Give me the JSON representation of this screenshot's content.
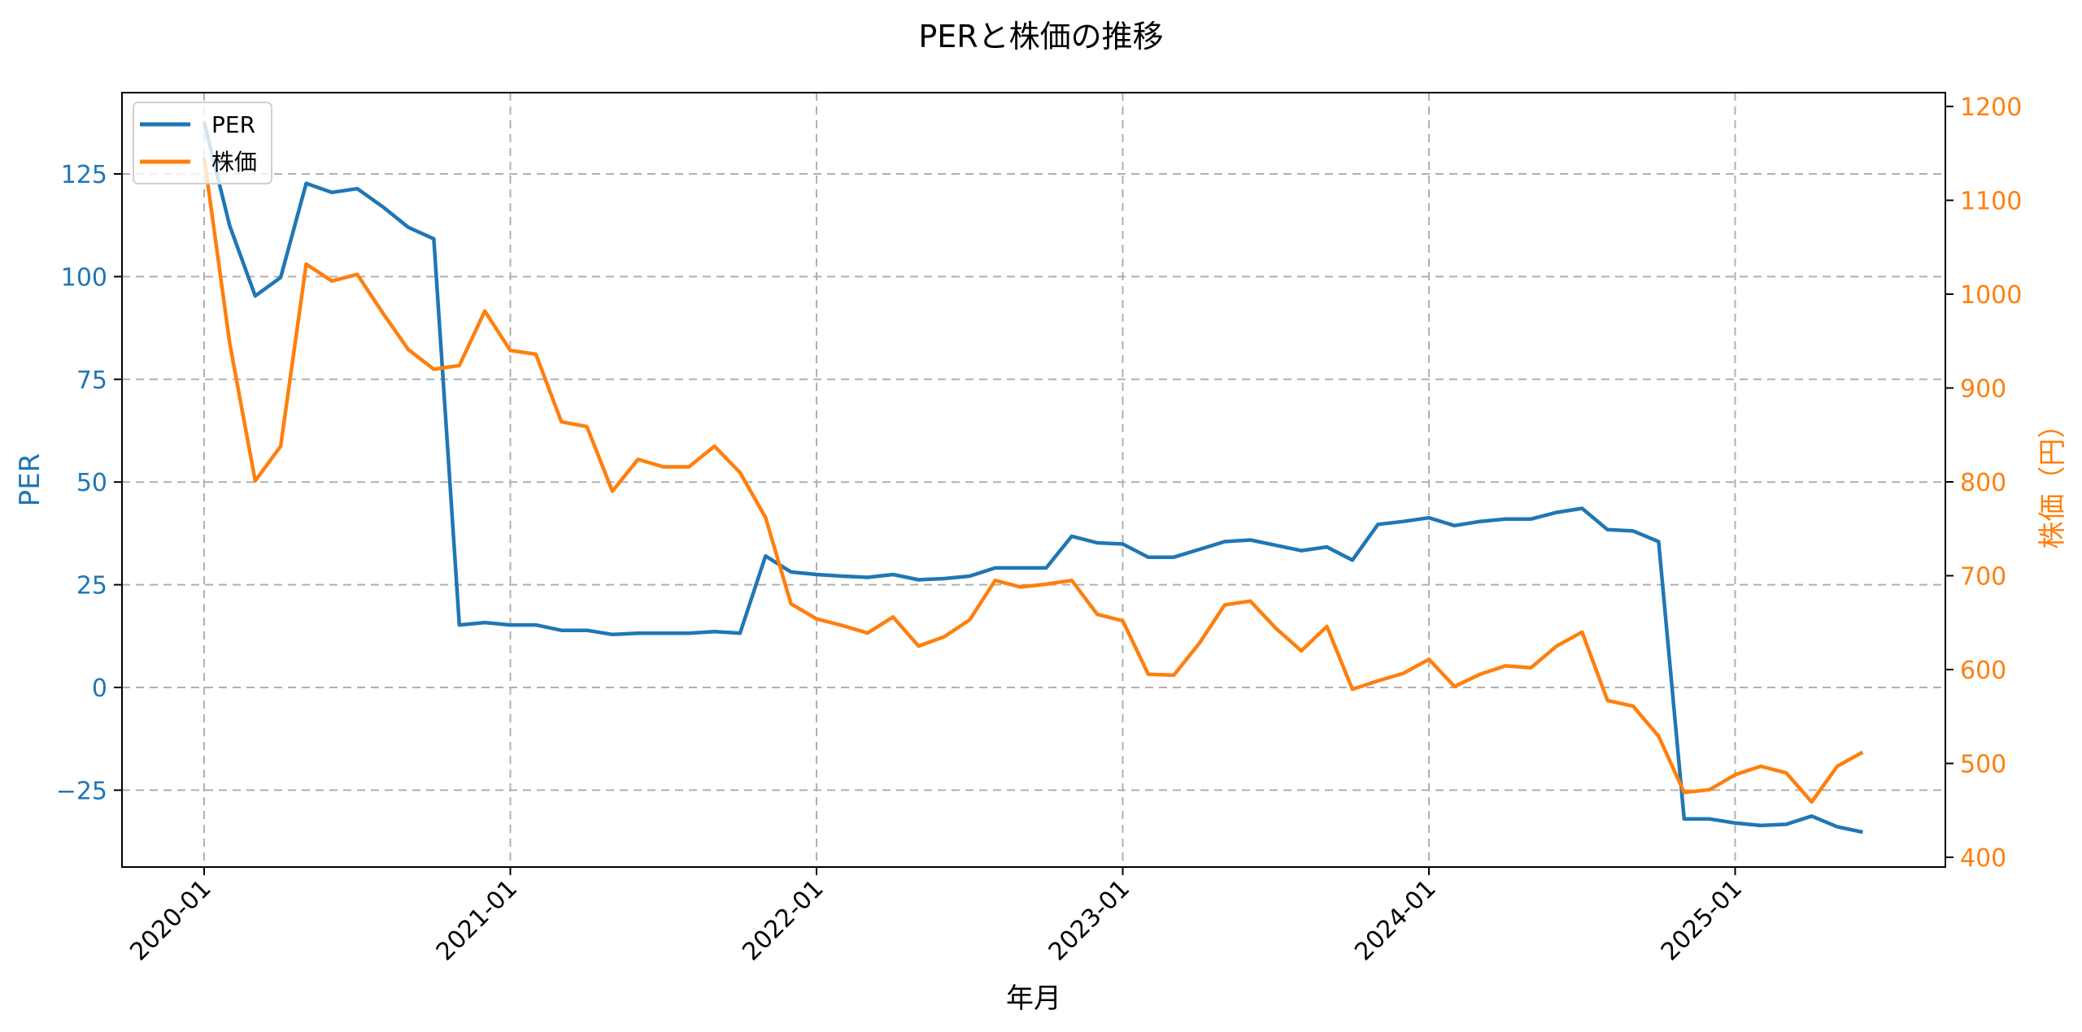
{
  "chart_data": {
    "type": "line",
    "title": "PERと株価の推移",
    "xlabel": "年月",
    "ylabel": "PER",
    "ylabel_right": "株価（円）",
    "ylim": [
      -43,
      143
    ],
    "ylim_right": [
      400,
      1215
    ],
    "yticks": [
      -25,
      0,
      25,
      50,
      75,
      100,
      125
    ],
    "yticks_right": [
      400,
      500,
      600,
      700,
      800,
      900,
      1000,
      1100,
      1200
    ],
    "xtick_labels": [
      "2020-01",
      "2021-01",
      "2022-01",
      "2023-01",
      "2024-01",
      "2025-01"
    ],
    "grid": true,
    "legend_position": "upper left",
    "colors": {
      "PER": "#1f77b4",
      "株価": "#ff7f0e"
    },
    "x": [
      "2020-01",
      "2020-02",
      "2020-03",
      "2020-04",
      "2020-05",
      "2020-06",
      "2020-07",
      "2020-08",
      "2020-09",
      "2020-10",
      "2020-11",
      "2020-12",
      "2021-01",
      "2021-02",
      "2021-03",
      "2021-04",
      "2021-05",
      "2021-06",
      "2021-07",
      "2021-08",
      "2021-09",
      "2021-10",
      "2021-11",
      "2021-12",
      "2022-01",
      "2022-02",
      "2022-03",
      "2022-04",
      "2022-05",
      "2022-06",
      "2022-07",
      "2022-08",
      "2022-09",
      "2022-10",
      "2022-11",
      "2022-12",
      "2023-01",
      "2023-02",
      "2023-03",
      "2023-04",
      "2023-05",
      "2023-06",
      "2023-07",
      "2023-08",
      "2023-09",
      "2023-10",
      "2023-11",
      "2023-12",
      "2024-01",
      "2024-02",
      "2024-03",
      "2024-04",
      "2024-05",
      "2024-06",
      "2024-07",
      "2024-08",
      "2024-09",
      "2024-10",
      "2024-11",
      "2024-12",
      "2025-01",
      "2025-02",
      "2025-03",
      "2025-04",
      "2025-05",
      "2025-06"
    ],
    "series": [
      {
        "name": "PER",
        "axis": "left",
        "values": [
          137.6,
          112.4,
          95.3,
          99.8,
          122.7,
          120.5,
          121.4,
          117.0,
          112.0,
          109.2,
          15.2,
          15.8,
          15.2,
          15.2,
          13.9,
          13.9,
          12.9,
          13.2,
          13.2,
          13.2,
          13.6,
          13.2,
          32.0,
          28.1,
          27.5,
          27.1,
          26.8,
          27.5,
          26.2,
          26.5,
          27.1,
          29.1,
          29.1,
          29.1,
          36.8,
          35.2,
          34.9,
          31.7,
          31.7,
          33.6,
          35.5,
          35.9,
          34.6,
          33.3,
          34.2,
          31.0,
          39.7,
          40.4,
          41.3,
          39.4,
          40.4,
          41.0,
          41.0,
          42.6,
          43.6,
          38.4,
          38.1,
          35.5,
          -32.0,
          -32.0,
          -33.0,
          -33.6,
          -33.3,
          -31.3,
          -33.9,
          -35.2
        ]
      },
      {
        "name": "株価",
        "axis": "right",
        "values": [
          1146,
          948,
          801,
          838,
          1032,
          1014,
          1021,
          980,
          941,
          920,
          924,
          982,
          940,
          936,
          864,
          859,
          790,
          824,
          816,
          816,
          838,
          810,
          762,
          670,
          654,
          647,
          639,
          656,
          625,
          635,
          653,
          695,
          688,
          691,
          695,
          659,
          652,
          595,
          594,
          628,
          669,
          673,
          644,
          620,
          646,
          579,
          588,
          596,
          611,
          582,
          595,
          604,
          602,
          625,
          640,
          567,
          561,
          529,
          469,
          472,
          488,
          497,
          490,
          459,
          497,
          512
        ]
      }
    ]
  }
}
